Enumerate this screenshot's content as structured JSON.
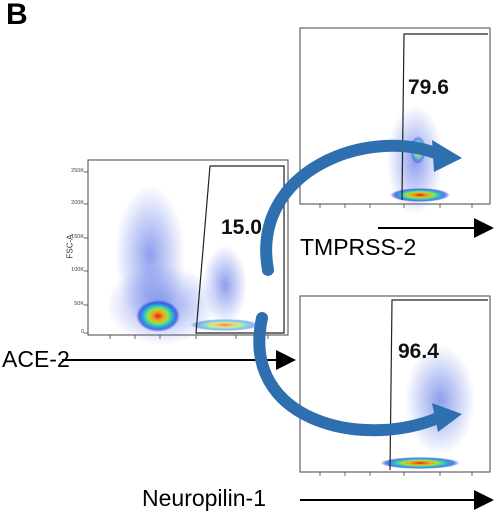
{
  "panel_letter": "B",
  "main_plot": {
    "ylabel": "FSC-A",
    "gate_value": "15.0",
    "x_marker": "ACE-2",
    "y_ticks": [
      "250K",
      "200K",
      "150K",
      "100K",
      "50K",
      "0"
    ]
  },
  "top_plot": {
    "gate_value": "79.6",
    "x_marker": "TMPRSS-2"
  },
  "bottom_plot": {
    "gate_value": "96.4",
    "x_marker": "Neuropilin-1"
  },
  "colors": {
    "arrow_blue": "#2e6fb0",
    "density_low": "#1a2fd0",
    "density_mid": "#22c0e0",
    "density_high": "#e02010"
  }
}
